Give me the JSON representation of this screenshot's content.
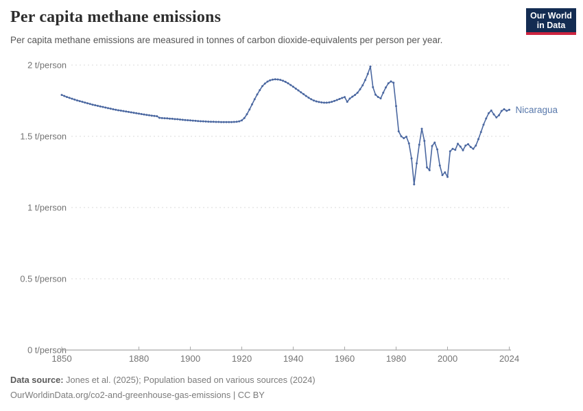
{
  "header": {
    "title": "Per capita methane emissions",
    "subtitle": "Per capita methane emissions are measured in tonnes of carbon dioxide-equivalents per person per year.",
    "logo": {
      "line1": "Our World",
      "line2": "in Data"
    }
  },
  "footer": {
    "source_label": "Data source:",
    "source_text": " Jones et al. (2025); Population based on various sources (2024)",
    "note_text": "OurWorldinData.org/co2-and-greenhouse-gas-emissions | CC BY"
  },
  "colors": {
    "line": "#4a67a0",
    "point": "#4a67a0",
    "entity_label": "#5878ab",
    "grid": "#dadada",
    "axis": "#a8a8a8",
    "tick_text": "#737373",
    "logo_bg": "#132c52",
    "logo_red": "#cd2440"
  },
  "chart_data": {
    "type": "line",
    "title": "Per capita methane emissions",
    "unit": "t/person",
    "grid": true,
    "legend_position": "end-of-line label",
    "xlim": [
      1850,
      2024
    ],
    "ylim": [
      0,
      2
    ],
    "x_ticks": [
      1850,
      1880,
      1900,
      1920,
      1940,
      1960,
      1980,
      2000,
      2024
    ],
    "y_ticks": [
      {
        "value": 0,
        "label": "0 t/person"
      },
      {
        "value": 0.5,
        "label": "0.5 t/person"
      },
      {
        "value": 1,
        "label": "1 t/person"
      },
      {
        "value": 1.5,
        "label": "1.5 t/person"
      },
      {
        "value": 2,
        "label": "2 t/person"
      }
    ],
    "x_start": 1850,
    "x_step": 1,
    "series": [
      {
        "name": "Nicaragua",
        "values": [
          1.79,
          1.783,
          1.776,
          1.77,
          1.764,
          1.758,
          1.752,
          1.747,
          1.742,
          1.737,
          1.732,
          1.727,
          1.722,
          1.718,
          1.714,
          1.71,
          1.706,
          1.702,
          1.698,
          1.694,
          1.69,
          1.686,
          1.683,
          1.68,
          1.677,
          1.674,
          1.671,
          1.668,
          1.665,
          1.662,
          1.659,
          1.656,
          1.653,
          1.65,
          1.648,
          1.645,
          1.643,
          1.641,
          1.63,
          1.628,
          1.627,
          1.626,
          1.624,
          1.623,
          1.621,
          1.62,
          1.618,
          1.616,
          1.614,
          1.613,
          1.612,
          1.61,
          1.609,
          1.607,
          1.606,
          1.605,
          1.604,
          1.603,
          1.602,
          1.602,
          1.601,
          1.601,
          1.6,
          1.6,
          1.6,
          1.6,
          1.6,
          1.601,
          1.602,
          1.605,
          1.612,
          1.628,
          1.655,
          1.688,
          1.724,
          1.76,
          1.794,
          1.824,
          1.852,
          1.87,
          1.884,
          1.893,
          1.898,
          1.9,
          1.899,
          1.896,
          1.89,
          1.882,
          1.872,
          1.86,
          1.848,
          1.835,
          1.822,
          1.809,
          1.796,
          1.783,
          1.771,
          1.76,
          1.751,
          1.745,
          1.741,
          1.738,
          1.736,
          1.736,
          1.738,
          1.742,
          1.748,
          1.755,
          1.762,
          1.769,
          1.775,
          1.742,
          1.765,
          1.778,
          1.79,
          1.806,
          1.83,
          1.858,
          1.895,
          1.938,
          1.99,
          1.845,
          1.792,
          1.776,
          1.766,
          1.806,
          1.843,
          1.872,
          1.885,
          1.876,
          1.712,
          1.535,
          1.5,
          1.487,
          1.497,
          1.45,
          1.345,
          1.163,
          1.31,
          1.441,
          1.553,
          1.468,
          1.282,
          1.262,
          1.432,
          1.456,
          1.408,
          1.295,
          1.228,
          1.247,
          1.215,
          1.395,
          1.412,
          1.405,
          1.448,
          1.428,
          1.402,
          1.435,
          1.445,
          1.425,
          1.412,
          1.435,
          1.48,
          1.53,
          1.582,
          1.625,
          1.662,
          1.681,
          1.654,
          1.633,
          1.648,
          1.678,
          1.69,
          1.679,
          1.686
        ]
      }
    ]
  }
}
